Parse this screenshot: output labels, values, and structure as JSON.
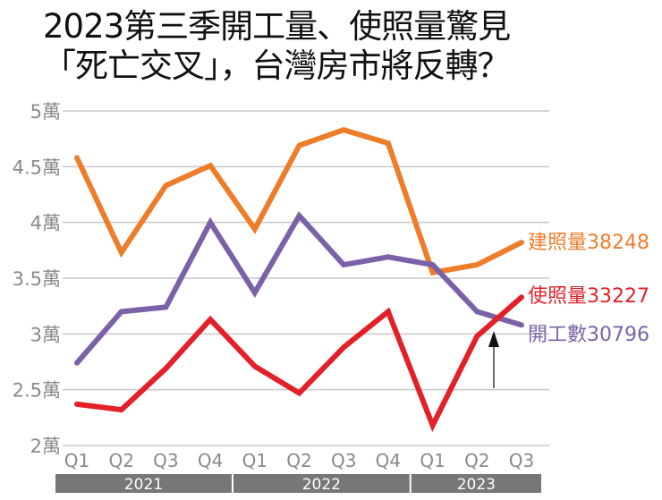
{
  "title_lines": [
    "2023第三季開工量、使照量驚見",
    "「死亡交叉」，台灣房市將反轉？"
  ],
  "chart_data": {
    "type": "line",
    "title": "2023第三季開工量、使照量驚見「死亡交叉」，台灣房市將反轉？",
    "x": [
      "Q1",
      "Q2",
      "Q3",
      "Q4",
      "Q1",
      "Q2",
      "Q3",
      "Q4",
      "Q1",
      "Q2",
      "Q3"
    ],
    "years": [
      {
        "label": "2021",
        "quarters": 4
      },
      {
        "label": "2022",
        "quarters": 4
      },
      {
        "label": "2023",
        "quarters": 3
      }
    ],
    "yticks": [
      {
        "v": 2,
        "label": "2萬"
      },
      {
        "v": 2.5,
        "label": "2.5萬"
      },
      {
        "v": 3,
        "label": "3萬"
      },
      {
        "v": 3.5,
        "label": "3.5萬"
      },
      {
        "v": 4,
        "label": "4萬"
      },
      {
        "v": 4.5,
        "label": "4.5萬"
      },
      {
        "v": 5,
        "label": "5萬"
      }
    ],
    "ylim": [
      2,
      5
    ],
    "grid": true,
    "series": [
      {
        "name": "建照量",
        "end_value": "38248",
        "color": "#ee7d2b",
        "values": [
          4.58,
          3.73,
          4.33,
          4.51,
          3.94,
          4.69,
          4.83,
          4.71,
          3.55,
          3.62,
          3.82
        ]
      },
      {
        "name": "開工數",
        "end_value": "30796",
        "color": "#7b62a8",
        "values": [
          2.74,
          3.2,
          3.24,
          4.0,
          3.37,
          4.06,
          3.62,
          3.69,
          3.62,
          3.2,
          3.08
        ]
      },
      {
        "name": "使照量",
        "end_value": "33227",
        "color": "#e32028",
        "values": [
          2.37,
          2.32,
          2.69,
          3.13,
          2.71,
          2.47,
          2.88,
          3.2,
          2.18,
          2.98,
          3.33
        ]
      }
    ],
    "annotation": "arrow pointing to crossover at 2023 Q2–Q3"
  }
}
